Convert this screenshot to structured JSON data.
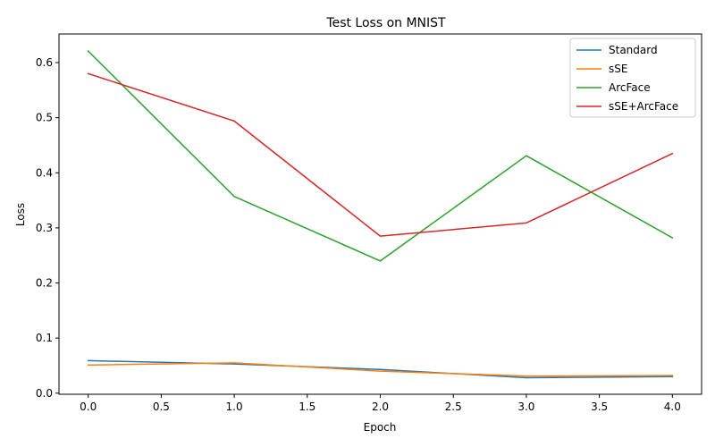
{
  "chart_data": {
    "type": "line",
    "title": "Test Loss on MNIST",
    "xlabel": "Epoch",
    "ylabel": "Loss",
    "xlim": [
      -0.2,
      4.2
    ],
    "ylim": [
      -0.002,
      0.652
    ],
    "xticks": [
      0.0,
      0.5,
      1.0,
      1.5,
      2.0,
      2.5,
      3.0,
      3.5,
      4.0
    ],
    "xtick_labels": [
      "0.0",
      "0.5",
      "1.0",
      "1.5",
      "2.0",
      "2.5",
      "3.0",
      "3.5",
      "4.0"
    ],
    "yticks": [
      0.0,
      0.1,
      0.2,
      0.3,
      0.4,
      0.5,
      0.6
    ],
    "ytick_labels": [
      "0.0",
      "0.1",
      "0.2",
      "0.3",
      "0.4",
      "0.5",
      "0.6"
    ],
    "grid": false,
    "legend": "top-right",
    "x": [
      0,
      1,
      2,
      3,
      4
    ],
    "series": [
      {
        "name": "Standard",
        "color": "#1f77b4",
        "values": [
          0.059,
          0.053,
          0.043,
          0.028,
          0.03
        ]
      },
      {
        "name": "sSE",
        "color": "#ff7f0e",
        "values": [
          0.051,
          0.055,
          0.04,
          0.031,
          0.032
        ]
      },
      {
        "name": "ArcFace",
        "color": "#2ca02c",
        "values": [
          0.621,
          0.357,
          0.24,
          0.431,
          0.282
        ]
      },
      {
        "name": "sSE+ArcFace",
        "color": "#d62728",
        "values": [
          0.58,
          0.494,
          0.285,
          0.309,
          0.435
        ]
      }
    ]
  }
}
